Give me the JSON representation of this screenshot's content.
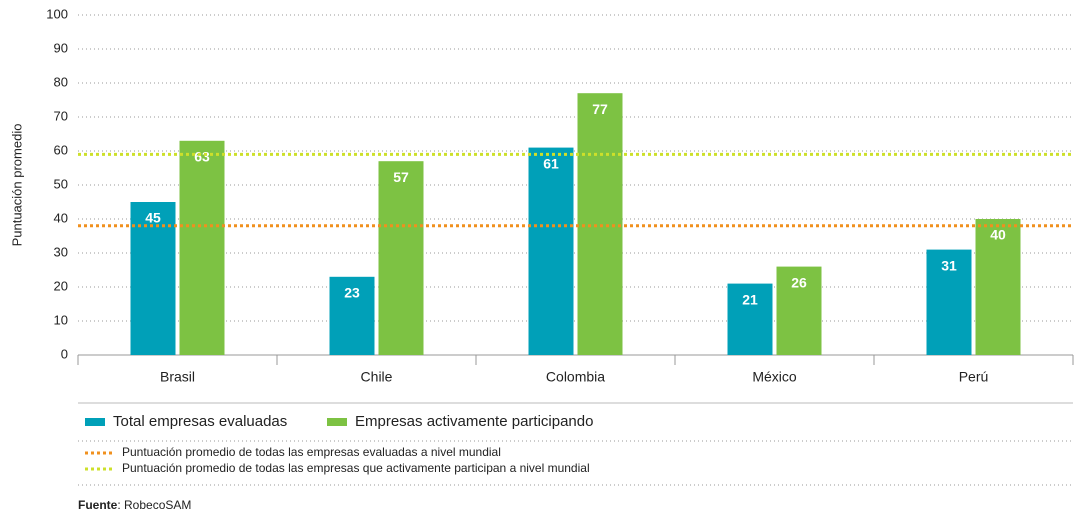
{
  "chart_data": {
    "type": "bar",
    "y_label": "Puntuación promedio",
    "categories": [
      "Brasil",
      "Chile",
      "Colombia",
      "México",
      "Perú"
    ],
    "series": [
      {
        "name": "Total empresas evaluadas",
        "color": "#00a0b8",
        "values": [
          45,
          23,
          61,
          21,
          31
        ]
      },
      {
        "name": "Empresas activamente participando",
        "color": "#7dc243",
        "values": [
          63,
          57,
          77,
          26,
          40
        ]
      }
    ],
    "reference_lines": [
      {
        "label": "Puntuación promedio de todas las empresas evaluadas a nivel mundial",
        "value": 38,
        "color": "#f0901e"
      },
      {
        "label": "Puntuación promedio de todas las empresas que activamente participan a nivel mundial",
        "value": 59,
        "color": "#cde02a"
      }
    ],
    "ylim": [
      0,
      100
    ],
    "yticks": [
      0,
      10,
      20,
      30,
      40,
      50,
      60,
      70,
      80,
      90,
      100
    ],
    "grid": true,
    "source_label": "Fuente",
    "source_text": ": RobecoSAM"
  }
}
